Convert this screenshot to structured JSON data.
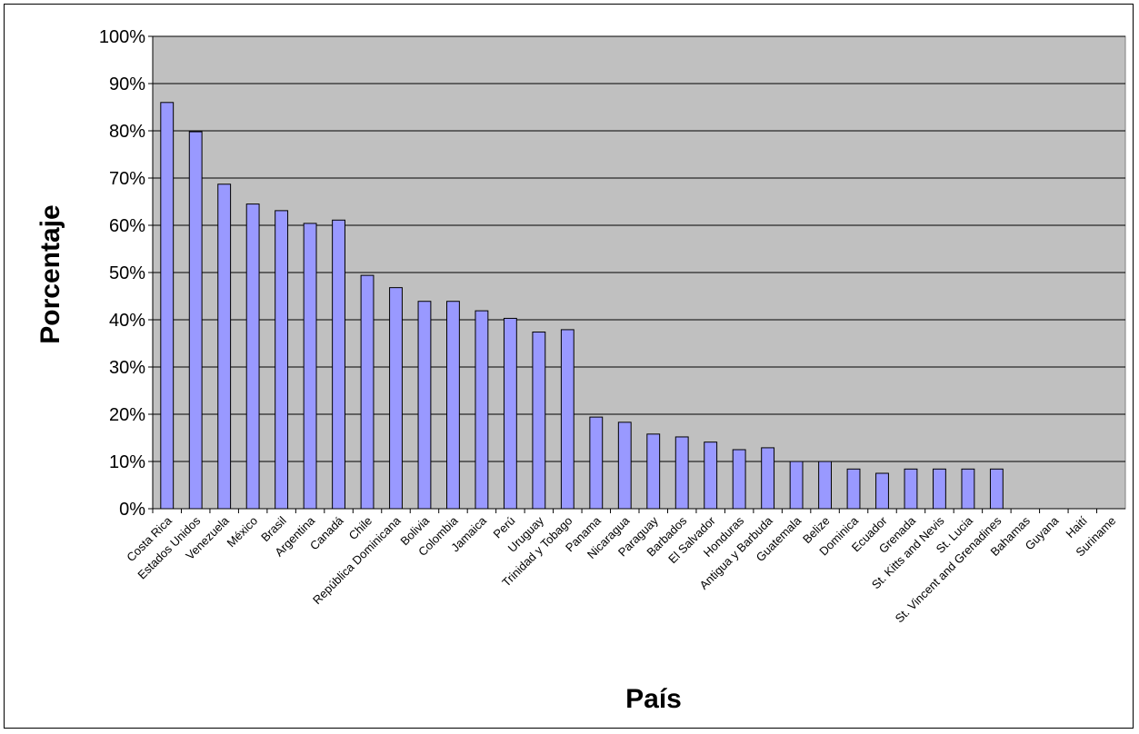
{
  "chart_data": {
    "type": "bar",
    "title": "",
    "xlabel": "País",
    "ylabel": "Porcentaje",
    "ylim": [
      0,
      100
    ],
    "y_ticks": [
      "0%",
      "10%",
      "20%",
      "30%",
      "40%",
      "50%",
      "60%",
      "70%",
      "80%",
      "90%",
      "100%"
    ],
    "grid": true,
    "legend": "none",
    "colors": {
      "plot_background": "#c0c0c0",
      "bar_fill": "#9999ff",
      "bar_stroke": "#000000",
      "gridline": "#000000"
    },
    "categories": [
      "Costa Rica",
      "Estados Unidos",
      "Venezuela",
      "México",
      "Brasil",
      "Argentina",
      "Canadá",
      "Chile",
      "República Dominicana",
      "Bolivia",
      "Colombia",
      "Jamaica",
      "Perú",
      "Uruguay",
      "Trinidad y Tobago",
      "Panama",
      "Nicaragua",
      "Paraguay",
      "Barbados",
      "El Salvador",
      "Honduras",
      "Antigua y Barbuda",
      "Guatemala",
      "Belize",
      "Dominica",
      "Ecuador",
      "Grenada",
      "St. Kitts and Nevis",
      "St. Lucia",
      "St. Vincent and Grenadines",
      "Bahamas",
      "Guyana",
      "Haití",
      "Suriname"
    ],
    "values": [
      86,
      79.8,
      68.7,
      64.5,
      63.1,
      60.4,
      61.1,
      49.4,
      46.8,
      43.9,
      43.9,
      41.9,
      40.3,
      37.4,
      37.9,
      19.4,
      18.3,
      15.8,
      15.2,
      14.1,
      12.5,
      12.9,
      10,
      10,
      8.4,
      7.5,
      8.4,
      8.4,
      8.4,
      8.4,
      0,
      0,
      0,
      0
    ]
  }
}
